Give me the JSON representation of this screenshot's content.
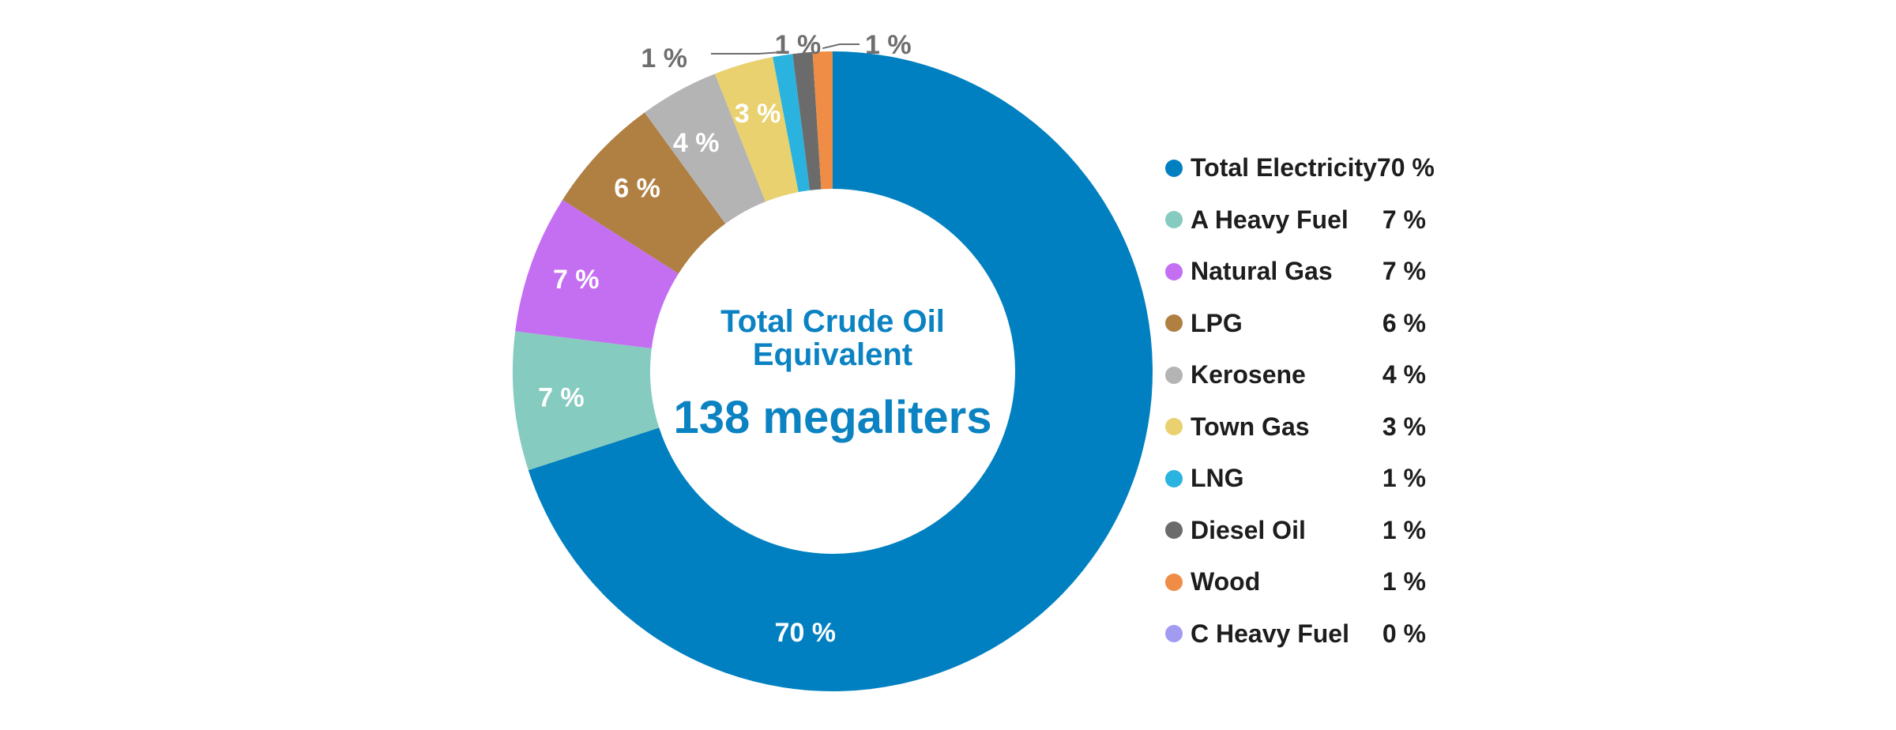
{
  "chart_data": {
    "type": "pie",
    "variant": "donut",
    "center_title_lines": [
      "Total Crude Oil",
      "Equivalent"
    ],
    "center_value": "138 megaliters",
    "legend_placement": "right",
    "slices": [
      {
        "name": "Total Electricity",
        "value": 70,
        "label": "70 %",
        "color": "#0080c0"
      },
      {
        "name": "A Heavy Fuel",
        "value": 7,
        "label": "7 %",
        "color": "#86cbbf"
      },
      {
        "name": "Natural Gas",
        "value": 7,
        "label": "7 %",
        "color": "#c46ef2"
      },
      {
        "name": "LPG",
        "value": 6,
        "label": "6 %",
        "color": "#b08043"
      },
      {
        "name": "Kerosene",
        "value": 4,
        "label": "4 %",
        "color": "#b4b4b4"
      },
      {
        "name": "Town Gas",
        "value": 3,
        "label": "3 %",
        "color": "#e8d16e"
      },
      {
        "name": "LNG",
        "value": 1,
        "label": "1 %",
        "color": "#2bb3e0"
      },
      {
        "name": "Diesel Oil",
        "value": 1,
        "label": "1 %",
        "color": "#6b6b6b"
      },
      {
        "name": "Wood",
        "value": 1,
        "label": "1 %",
        "color": "#ef8c45"
      },
      {
        "name": "C Heavy Fuel",
        "value": 0,
        "label": "0 %",
        "color": "#a29bf2"
      }
    ]
  }
}
